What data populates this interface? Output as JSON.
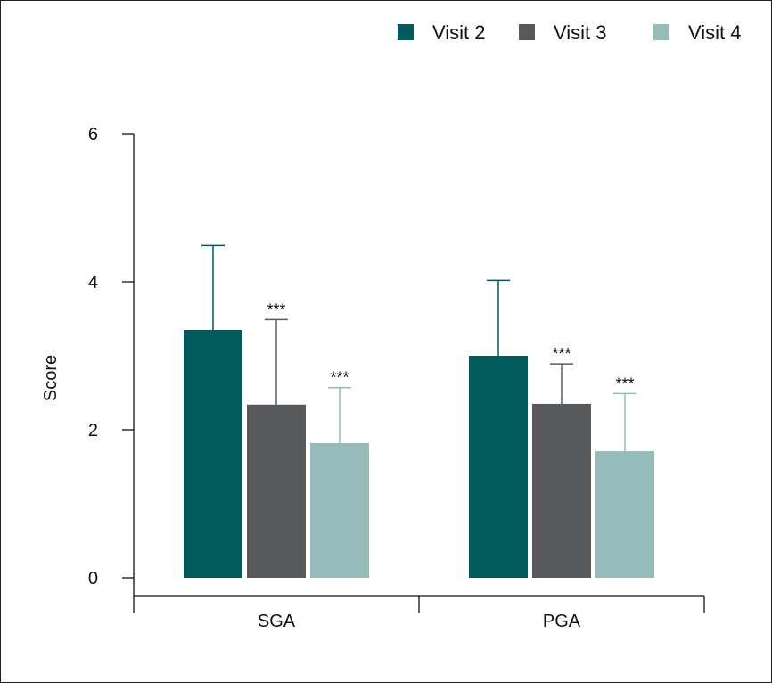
{
  "chart_data": {
    "type": "bar",
    "title": "",
    "xlabel": "",
    "ylabel": "Score",
    "ylim": [
      0,
      6
    ],
    "yticks": [
      "0",
      "2",
      "4",
      "6"
    ],
    "categories": [
      "SGA",
      "PGA"
    ],
    "legend_position": "top-right",
    "series": [
      {
        "name": "Visit 2",
        "color": "#005b5e",
        "values": [
          3.35,
          3.0
        ],
        "error_upper": [
          4.49,
          4.02
        ],
        "annotations": [
          "",
          ""
        ]
      },
      {
        "name": "Visit 3",
        "color": "#58595b",
        "values": [
          2.34,
          2.35
        ],
        "error_upper": [
          3.49,
          2.89
        ],
        "annotations": [
          "***",
          "***"
        ]
      },
      {
        "name": "Visit 4",
        "color": "#95bcbb",
        "values": [
          1.82,
          1.71
        ],
        "error_upper": [
          2.57,
          2.49
        ],
        "annotations": [
          "***",
          "***"
        ]
      }
    ]
  }
}
